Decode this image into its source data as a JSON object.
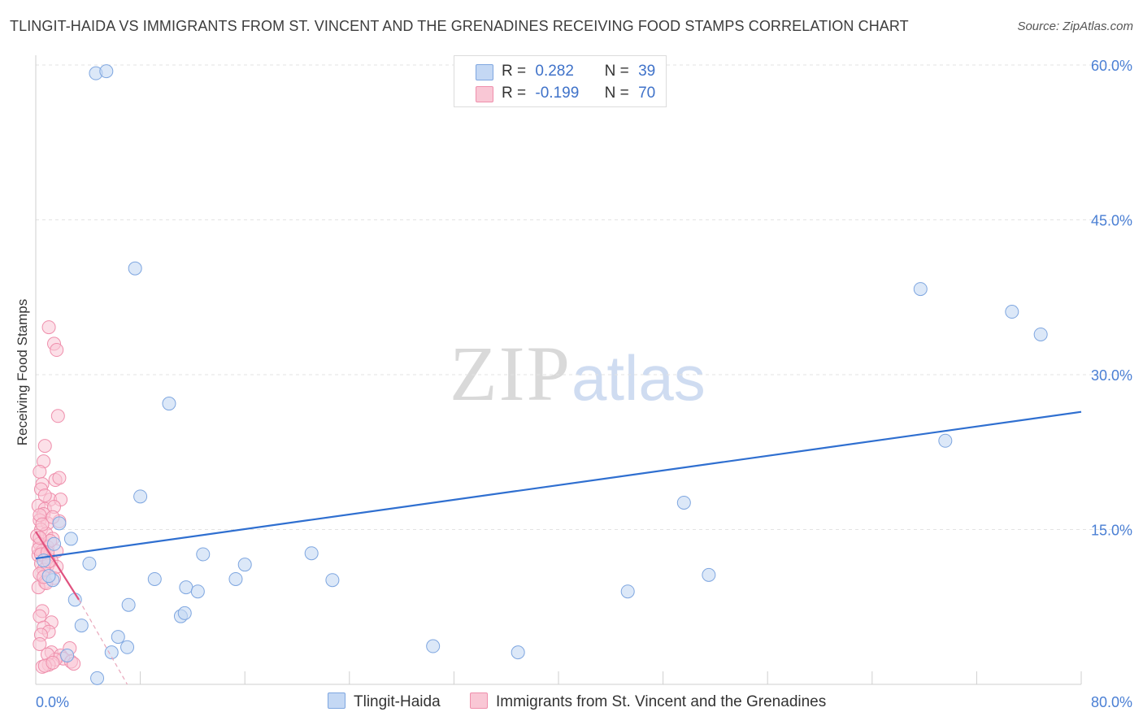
{
  "title": "TLINGIT-HAIDA VS IMMIGRANTS FROM ST. VINCENT AND THE GRENADINES RECEIVING FOOD STAMPS CORRELATION CHART",
  "source": "Source: ZipAtlas.com",
  "watermark": {
    "zip": "ZIP",
    "atlas": "atlas"
  },
  "stats": [
    {
      "r_label": "R =",
      "r_value": "0.282",
      "n_label": "N =",
      "n_value": "39",
      "color": "#adc9f2"
    },
    {
      "r_label": "R =",
      "r_value": "-0.199",
      "n_label": "N =",
      "n_value": "70",
      "color": "#f7b6c8"
    }
  ],
  "legend": {
    "series1": "Tlingit-Haida",
    "series2": "Immigrants from St. Vincent and the Grenadines"
  },
  "chart_data": {
    "type": "scatter",
    "ylabel": "Receiving Food Stamps",
    "xlim": [
      0,
      80
    ],
    "ylim": [
      0,
      60
    ],
    "x_tick_labels": [
      "0.0%",
      "80.0%"
    ],
    "y_ticks": [
      15,
      30,
      45,
      60
    ],
    "y_tick_labels": [
      "15.0%",
      "30.0%",
      "45.0%",
      "60.0%"
    ],
    "grid": true,
    "colors": {
      "series1_fill": "#c4d8f4",
      "series1_stroke": "#7ea6e0",
      "series1_line": "#2f6fd0",
      "series2_fill": "#f9c7d5",
      "series2_stroke": "#ef8fac",
      "series2_line": "#e0527f"
    },
    "series": [
      {
        "name": "Tlingit-Haida",
        "points": [
          [
            4.6,
            59.2
          ],
          [
            5.4,
            59.4
          ],
          [
            7.6,
            40.3
          ],
          [
            10.2,
            27.2
          ],
          [
            8.0,
            18.2
          ],
          [
            67.7,
            38.3
          ],
          [
            74.7,
            36.1
          ],
          [
            76.9,
            33.9
          ],
          [
            69.6,
            23.6
          ],
          [
            49.6,
            17.6
          ],
          [
            1.8,
            15.6
          ],
          [
            2.7,
            14.1
          ],
          [
            1.4,
            13.6
          ],
          [
            4.1,
            11.7
          ],
          [
            12.8,
            12.6
          ],
          [
            16.0,
            11.6
          ],
          [
            21.1,
            12.7
          ],
          [
            9.1,
            10.2
          ],
          [
            11.5,
            9.4
          ],
          [
            12.4,
            9.0
          ],
          [
            15.3,
            10.2
          ],
          [
            22.7,
            10.1
          ],
          [
            45.3,
            9.0
          ],
          [
            51.5,
            10.6
          ],
          [
            1.3,
            10.1
          ],
          [
            3.0,
            8.2
          ],
          [
            7.1,
            7.7
          ],
          [
            11.1,
            6.6
          ],
          [
            11.4,
            6.9
          ],
          [
            3.5,
            5.7
          ],
          [
            6.3,
            4.6
          ],
          [
            7.0,
            3.6
          ],
          [
            5.8,
            3.1
          ],
          [
            30.4,
            3.7
          ],
          [
            36.9,
            3.1
          ],
          [
            2.4,
            2.8
          ],
          [
            4.7,
            0.6
          ],
          [
            1.0,
            10.5
          ],
          [
            0.6,
            12.0
          ]
        ],
        "trend": [
          [
            0,
            12.2
          ],
          [
            80,
            26.4
          ]
        ]
      },
      {
        "name": "Immigrants from St. Vincent and the Grenadines",
        "points": [
          [
            1.0,
            34.6
          ],
          [
            1.4,
            33.0
          ],
          [
            1.6,
            32.4
          ],
          [
            1.7,
            26.0
          ],
          [
            0.7,
            23.1
          ],
          [
            0.6,
            21.6
          ],
          [
            0.3,
            20.6
          ],
          [
            1.5,
            19.8
          ],
          [
            0.5,
            19.4
          ],
          [
            0.4,
            18.9
          ],
          [
            1.1,
            17.9
          ],
          [
            1.9,
            17.9
          ],
          [
            0.2,
            17.3
          ],
          [
            0.7,
            17.0
          ],
          [
            1.4,
            17.2
          ],
          [
            0.6,
            16.5
          ],
          [
            0.3,
            15.9
          ],
          [
            0.9,
            15.6
          ],
          [
            1.8,
            15.8
          ],
          [
            0.4,
            15.0
          ],
          [
            0.1,
            14.4
          ],
          [
            0.8,
            14.6
          ],
          [
            1.3,
            14.1
          ],
          [
            0.3,
            13.6
          ],
          [
            0.9,
            13.3
          ],
          [
            0.5,
            12.9
          ],
          [
            1.6,
            12.9
          ],
          [
            0.2,
            12.5
          ],
          [
            0.7,
            12.3
          ],
          [
            1.2,
            12.0
          ],
          [
            0.4,
            11.7
          ],
          [
            0.9,
            11.5
          ],
          [
            0.6,
            11.1
          ],
          [
            0.3,
            10.7
          ],
          [
            1.4,
            10.3
          ],
          [
            0.7,
            9.9
          ],
          [
            0.2,
            9.4
          ],
          [
            0.8,
            9.8
          ],
          [
            0.5,
            7.1
          ],
          [
            0.3,
            6.6
          ],
          [
            1.2,
            6.0
          ],
          [
            0.6,
            5.5
          ],
          [
            1.0,
            5.1
          ],
          [
            0.4,
            4.8
          ],
          [
            0.3,
            3.9
          ],
          [
            2.6,
            3.5
          ],
          [
            1.2,
            3.1
          ],
          [
            1.9,
            2.8
          ],
          [
            2.1,
            2.5
          ],
          [
            1.5,
            2.4
          ],
          [
            0.9,
            2.9
          ],
          [
            1.0,
            1.9
          ],
          [
            2.7,
            2.2
          ],
          [
            0.5,
            1.7
          ],
          [
            0.7,
            1.8
          ],
          [
            2.9,
            2.0
          ],
          [
            1.3,
            2.1
          ],
          [
            0.3,
            16.4
          ],
          [
            0.2,
            13.1
          ],
          [
            1.1,
            13.9
          ],
          [
            0.4,
            12.6
          ],
          [
            1.6,
            11.4
          ],
          [
            0.6,
            10.4
          ],
          [
            0.9,
            12.8
          ],
          [
            0.3,
            14.2
          ],
          [
            1.0,
            11.9
          ],
          [
            0.5,
            15.5
          ],
          [
            1.3,
            16.2
          ],
          [
            0.7,
            18.3
          ],
          [
            1.8,
            20.0
          ]
        ],
        "trend": [
          [
            0,
            14.8
          ],
          [
            3.3,
            8.2
          ]
        ],
        "trend_dashed": [
          [
            3.3,
            8.2
          ],
          [
            7.0,
            0.0
          ]
        ]
      }
    ]
  }
}
